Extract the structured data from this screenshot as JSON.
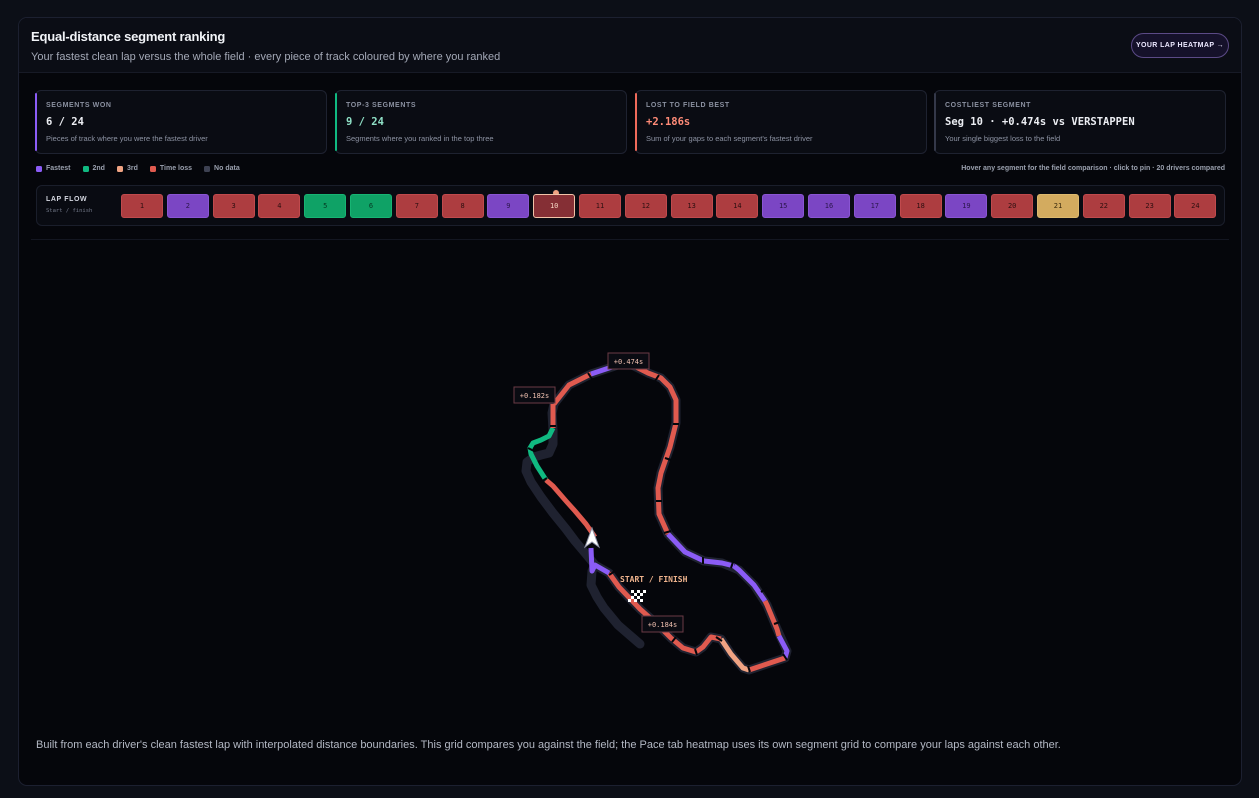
{
  "header": {
    "title": "Equal-distance segment ranking",
    "subtitle": "Your fastest clean lap versus the whole field · every piece of track coloured by where you ranked",
    "heatmap_button": "YOUR LAP HEATMAP →"
  },
  "cards": [
    {
      "label": "SEGMENTS WON",
      "value": "6 / 24",
      "desc": "Pieces of track where you were the fastest driver",
      "accent": "#8b5cf6",
      "value_color": "#eceef3"
    },
    {
      "label": "TOP-3 SEGMENTS",
      "value": "9 / 24",
      "desc": "Segments where you ranked in the top three",
      "accent": "#10b981",
      "value_color": "#8fe0c6"
    },
    {
      "label": "LOST TO FIELD BEST",
      "value": "+2.186s",
      "desc": "Sum of your gaps to each segment's fastest driver",
      "accent": "#ef6a5a",
      "value_color": "#ff8b77"
    },
    {
      "label": "COSTLIEST SEGMENT",
      "value": "Seg 10 · +0.474s vs VERSTAPPEN",
      "desc": "Your single biggest loss to the field",
      "accent": "#343849",
      "value_color": "#eceef3"
    }
  ],
  "legend": [
    {
      "label": "Fastest",
      "color": "#8b5cf6"
    },
    {
      "label": "2nd",
      "color": "#10b981"
    },
    {
      "label": "3rd",
      "color": "#f0a383"
    },
    {
      "label": "Time loss",
      "color": "#e05a4f"
    },
    {
      "label": "No data",
      "color": "#3d4152"
    }
  ],
  "hover_hint": "Hover any segment for the field comparison · click to pin · 20 drivers compared",
  "lap_flow": {
    "title": "LAP FLOW",
    "subtitle": "Start / finish",
    "segments": [
      {
        "n": "1",
        "status": "loss"
      },
      {
        "n": "2",
        "status": "fast"
      },
      {
        "n": "3",
        "status": "loss"
      },
      {
        "n": "4",
        "status": "loss"
      },
      {
        "n": "5",
        "status": "second"
      },
      {
        "n": "6",
        "status": "second"
      },
      {
        "n": "7",
        "status": "loss"
      },
      {
        "n": "8",
        "status": "loss"
      },
      {
        "n": "9",
        "status": "fast"
      },
      {
        "n": "10",
        "status": "sel"
      },
      {
        "n": "11",
        "status": "loss"
      },
      {
        "n": "12",
        "status": "loss"
      },
      {
        "n": "13",
        "status": "loss"
      },
      {
        "n": "14",
        "status": "loss"
      },
      {
        "n": "15",
        "status": "fast"
      },
      {
        "n": "16",
        "status": "fast"
      },
      {
        "n": "17",
        "status": "fast"
      },
      {
        "n": "18",
        "status": "loss"
      },
      {
        "n": "19",
        "status": "fast"
      },
      {
        "n": "20",
        "status": "loss"
      },
      {
        "n": "21",
        "status": "third"
      },
      {
        "n": "22",
        "status": "loss"
      },
      {
        "n": "23",
        "status": "loss"
      },
      {
        "n": "24",
        "status": "loss"
      }
    ],
    "end_label": "24"
  },
  "track": {
    "start_label": "START / FINISH",
    "callouts": [
      "+0.474s",
      "+0.182s",
      "+0.184s"
    ],
    "colors": {
      "fast": "#8b5cf6",
      "second": "#10b981",
      "third": "#f0a383",
      "loss": "#e05a4f"
    }
  },
  "footnote": "Built from each driver's clean fastest lap with interpolated distance boundaries. This grid compares you against the field; the Pace tab heatmap uses its own segment grid to compare your laps against each other."
}
